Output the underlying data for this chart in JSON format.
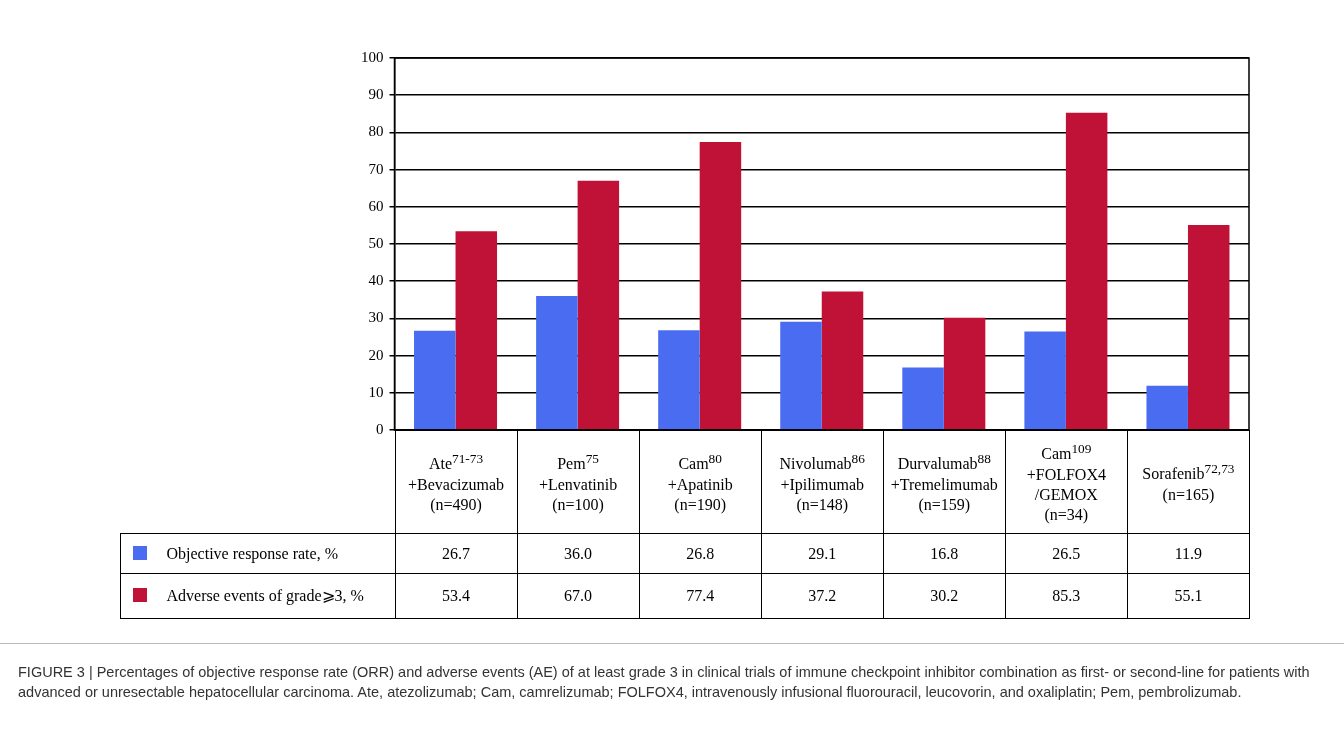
{
  "chart_data": {
    "type": "bar",
    "categories": [
      "Ate$^{71-73}$\n+Bevacizumab\n(n=490)",
      "Pem$^{75}$\n+Lenvatinib\n(n=100)",
      "Cam$^{80}$\n+Apatinib\n(n=190)",
      "Nivolumab$^{86}$\n+Ipilimumab\n(n=148)",
      "Durvalumab$^{88}$\n+Tremelimumab\n(n=159)",
      "Cam$^{109}$\n+FOLFOX4\n/GEMOX\n(n=34)",
      "Sorafenib$^{72,73}$\n(n=165)"
    ],
    "series": [
      {
        "name": "Objective response rate, %",
        "color": "#4a6cf0",
        "values": [
          26.7,
          36.0,
          26.8,
          29.1,
          16.8,
          26.5,
          11.9
        ],
        "value_labels": [
          "26.7",
          "36.0",
          "26.8",
          "29.1",
          "16.8",
          "26.5",
          "11.9"
        ]
      },
      {
        "name": "Adverse events of grade⩾3, %",
        "color": "#c01236",
        "values": [
          53.4,
          67.0,
          77.4,
          37.2,
          30.2,
          85.3,
          55.1
        ],
        "value_labels": [
          "53.4",
          "67.0",
          "77.4",
          "37.2",
          "30.2",
          "85.3",
          "55.1"
        ]
      }
    ],
    "ylim": [
      0,
      100
    ],
    "yticks": [
      0,
      10,
      20,
      30,
      40,
      50,
      60,
      70,
      80,
      90,
      100
    ],
    "grid": "y",
    "legend": "bottom",
    "annotations": [
      "FIGURE 3 | Percentages of objective response rate (ORR) and adverse events (AE) of at least grade 3 in clinical trials of immune checkpoint inhibitor combination as first- or second-line for patients with advanced or unresectable hepatocellular carcinoma. Ate, atezolizumab; Cam, camrelizumab; FOLFOX4, intravenously infusional fluorouracil, leucovorin, and oxaliplatin; Pem, pembrolizumab."
    ]
  }
}
